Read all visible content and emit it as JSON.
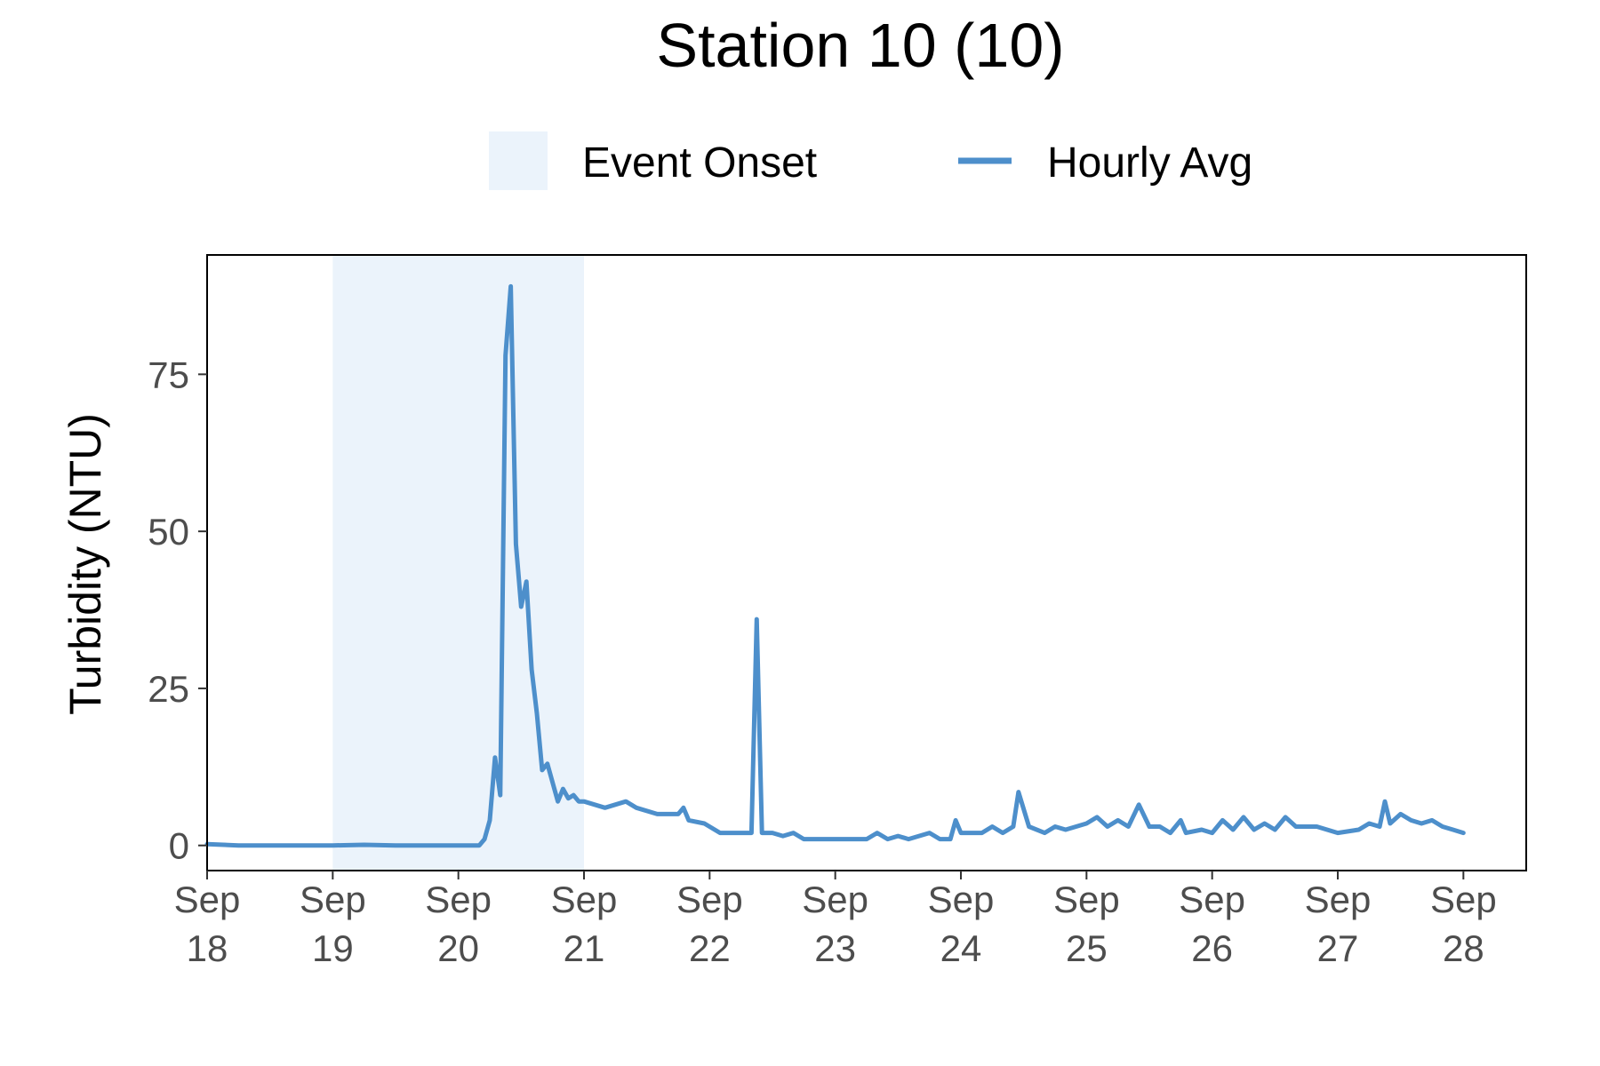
{
  "chart_data": {
    "type": "line",
    "title": "Station 10 (10)",
    "ylabel": "Turbidity (NTU)",
    "xlabel": "",
    "ylim": [
      -4,
      94
    ],
    "xlim": [
      "2023-09-18T00:00",
      "2023-09-28T12:00"
    ],
    "grid": false,
    "legend_position": "top",
    "legend": {
      "shade_label": "Event Onset",
      "line_label": "Hourly Avg"
    },
    "colors": {
      "line": "#4d8fcb",
      "shade": "#ebf3fb",
      "axis": "#333333",
      "tick_text": "#4d4d4d"
    },
    "y_ticks": [
      {
        "value": 0,
        "label": "0"
      },
      {
        "value": 25,
        "label": "25"
      },
      {
        "value": 50,
        "label": "50"
      },
      {
        "value": 75,
        "label": "75"
      }
    ],
    "x_ticks": [
      {
        "value": "2023-09-18T00:00",
        "line1": "Sep",
        "line2": "18"
      },
      {
        "value": "2023-09-19T00:00",
        "line1": "Sep",
        "line2": "19"
      },
      {
        "value": "2023-09-20T00:00",
        "line1": "Sep",
        "line2": "20"
      },
      {
        "value": "2023-09-21T00:00",
        "line1": "Sep",
        "line2": "21"
      },
      {
        "value": "2023-09-22T00:00",
        "line1": "Sep",
        "line2": "22"
      },
      {
        "value": "2023-09-23T00:00",
        "line1": "Sep",
        "line2": "23"
      },
      {
        "value": "2023-09-24T00:00",
        "line1": "Sep",
        "line2": "24"
      },
      {
        "value": "2023-09-25T00:00",
        "line1": "Sep",
        "line2": "25"
      },
      {
        "value": "2023-09-26T00:00",
        "line1": "Sep",
        "line2": "26"
      },
      {
        "value": "2023-09-27T00:00",
        "line1": "Sep",
        "line2": "27"
      },
      {
        "value": "2023-09-28T00:00",
        "line1": "Sep",
        "line2": "28"
      }
    ],
    "event_onset": {
      "start": "2023-09-19T00:00",
      "end": "2023-09-21T00:00"
    },
    "series": [
      {
        "name": "Hourly Avg",
        "points": [
          [
            "2023-09-18T00:00",
            0.2
          ],
          [
            "2023-09-18T06:00",
            0.0
          ],
          [
            "2023-09-18T12:00",
            0.0
          ],
          [
            "2023-09-18T18:00",
            0.0
          ],
          [
            "2023-09-19T00:00",
            0.0
          ],
          [
            "2023-09-19T06:00",
            0.1
          ],
          [
            "2023-09-19T12:00",
            0.0
          ],
          [
            "2023-09-19T18:00",
            0.0
          ],
          [
            "2023-09-20T00:00",
            0.0
          ],
          [
            "2023-09-20T04:00",
            0.0
          ],
          [
            "2023-09-20T05:00",
            1.0
          ],
          [
            "2023-09-20T06:00",
            4.0
          ],
          [
            "2023-09-20T07:00",
            14.0
          ],
          [
            "2023-09-20T08:00",
            8.0
          ],
          [
            "2023-09-20T09:00",
            78.0
          ],
          [
            "2023-09-20T10:00",
            89.0
          ],
          [
            "2023-09-20T11:00",
            48.0
          ],
          [
            "2023-09-20T12:00",
            38.0
          ],
          [
            "2023-09-20T13:00",
            42.0
          ],
          [
            "2023-09-20T14:00",
            28.0
          ],
          [
            "2023-09-20T15:00",
            21.0
          ],
          [
            "2023-09-20T16:00",
            12.0
          ],
          [
            "2023-09-20T17:00",
            13.0
          ],
          [
            "2023-09-20T18:00",
            10.0
          ],
          [
            "2023-09-20T19:00",
            7.0
          ],
          [
            "2023-09-20T20:00",
            9.0
          ],
          [
            "2023-09-20T21:00",
            7.5
          ],
          [
            "2023-09-20T22:00",
            8.0
          ],
          [
            "2023-09-20T23:00",
            7.0
          ],
          [
            "2023-09-21T00:00",
            7.0
          ],
          [
            "2023-09-21T04:00",
            6.0
          ],
          [
            "2023-09-21T08:00",
            7.0
          ],
          [
            "2023-09-21T10:00",
            6.0
          ],
          [
            "2023-09-21T14:00",
            5.0
          ],
          [
            "2023-09-21T18:00",
            5.0
          ],
          [
            "2023-09-21T19:00",
            6.0
          ],
          [
            "2023-09-21T20:00",
            4.0
          ],
          [
            "2023-09-21T23:00",
            3.5
          ],
          [
            "2023-09-22T02:00",
            2.0
          ],
          [
            "2023-09-22T06:00",
            2.0
          ],
          [
            "2023-09-22T08:00",
            2.0
          ],
          [
            "2023-09-22T09:00",
            36.0
          ],
          [
            "2023-09-22T10:00",
            2.0
          ],
          [
            "2023-09-22T12:00",
            2.0
          ],
          [
            "2023-09-22T14:00",
            1.5
          ],
          [
            "2023-09-22T16:00",
            2.0
          ],
          [
            "2023-09-22T18:00",
            1.0
          ],
          [
            "2023-09-23T00:00",
            1.0
          ],
          [
            "2023-09-23T06:00",
            1.0
          ],
          [
            "2023-09-23T08:00",
            2.0
          ],
          [
            "2023-09-23T10:00",
            1.0
          ],
          [
            "2023-09-23T12:00",
            1.5
          ],
          [
            "2023-09-23T14:00",
            1.0
          ],
          [
            "2023-09-23T18:00",
            2.0
          ],
          [
            "2023-09-23T20:00",
            1.0
          ],
          [
            "2023-09-23T22:00",
            1.0
          ],
          [
            "2023-09-23T23:00",
            4.0
          ],
          [
            "2023-09-24T00:00",
            2.0
          ],
          [
            "2023-09-24T04:00",
            2.0
          ],
          [
            "2023-09-24T06:00",
            3.0
          ],
          [
            "2023-09-24T08:00",
            2.0
          ],
          [
            "2023-09-24T10:00",
            3.0
          ],
          [
            "2023-09-24T11:00",
            8.5
          ],
          [
            "2023-09-24T13:00",
            3.0
          ],
          [
            "2023-09-24T16:00",
            2.0
          ],
          [
            "2023-09-24T18:00",
            3.0
          ],
          [
            "2023-09-24T20:00",
            2.5
          ],
          [
            "2023-09-24T22:00",
            3.0
          ],
          [
            "2023-09-25T00:00",
            3.5
          ],
          [
            "2023-09-25T02:00",
            4.5
          ],
          [
            "2023-09-25T04:00",
            3.0
          ],
          [
            "2023-09-25T06:00",
            4.0
          ],
          [
            "2023-09-25T08:00",
            3.0
          ],
          [
            "2023-09-25T10:00",
            6.5
          ],
          [
            "2023-09-25T12:00",
            3.0
          ],
          [
            "2023-09-25T14:00",
            3.0
          ],
          [
            "2023-09-25T16:00",
            2.0
          ],
          [
            "2023-09-25T18:00",
            4.0
          ],
          [
            "2023-09-25T19:00",
            2.0
          ],
          [
            "2023-09-25T22:00",
            2.5
          ],
          [
            "2023-09-26T00:00",
            2.0
          ],
          [
            "2023-09-26T02:00",
            4.0
          ],
          [
            "2023-09-26T04:00",
            2.5
          ],
          [
            "2023-09-26T06:00",
            4.5
          ],
          [
            "2023-09-26T08:00",
            2.5
          ],
          [
            "2023-09-26T10:00",
            3.5
          ],
          [
            "2023-09-26T12:00",
            2.5
          ],
          [
            "2023-09-26T14:00",
            4.5
          ],
          [
            "2023-09-26T16:00",
            3.0
          ],
          [
            "2023-09-26T20:00",
            3.0
          ],
          [
            "2023-09-27T00:00",
            2.0
          ],
          [
            "2023-09-27T04:00",
            2.5
          ],
          [
            "2023-09-27T06:00",
            3.5
          ],
          [
            "2023-09-27T08:00",
            3.0
          ],
          [
            "2023-09-27T09:00",
            7.0
          ],
          [
            "2023-09-27T10:00",
            3.5
          ],
          [
            "2023-09-27T12:00",
            5.0
          ],
          [
            "2023-09-27T14:00",
            4.0
          ],
          [
            "2023-09-27T16:00",
            3.5
          ],
          [
            "2023-09-27T18:00",
            4.0
          ],
          [
            "2023-09-27T20:00",
            3.0
          ],
          [
            "2023-09-27T22:00",
            2.5
          ],
          [
            "2023-09-28T00:00",
            2.0
          ]
        ]
      }
    ]
  }
}
